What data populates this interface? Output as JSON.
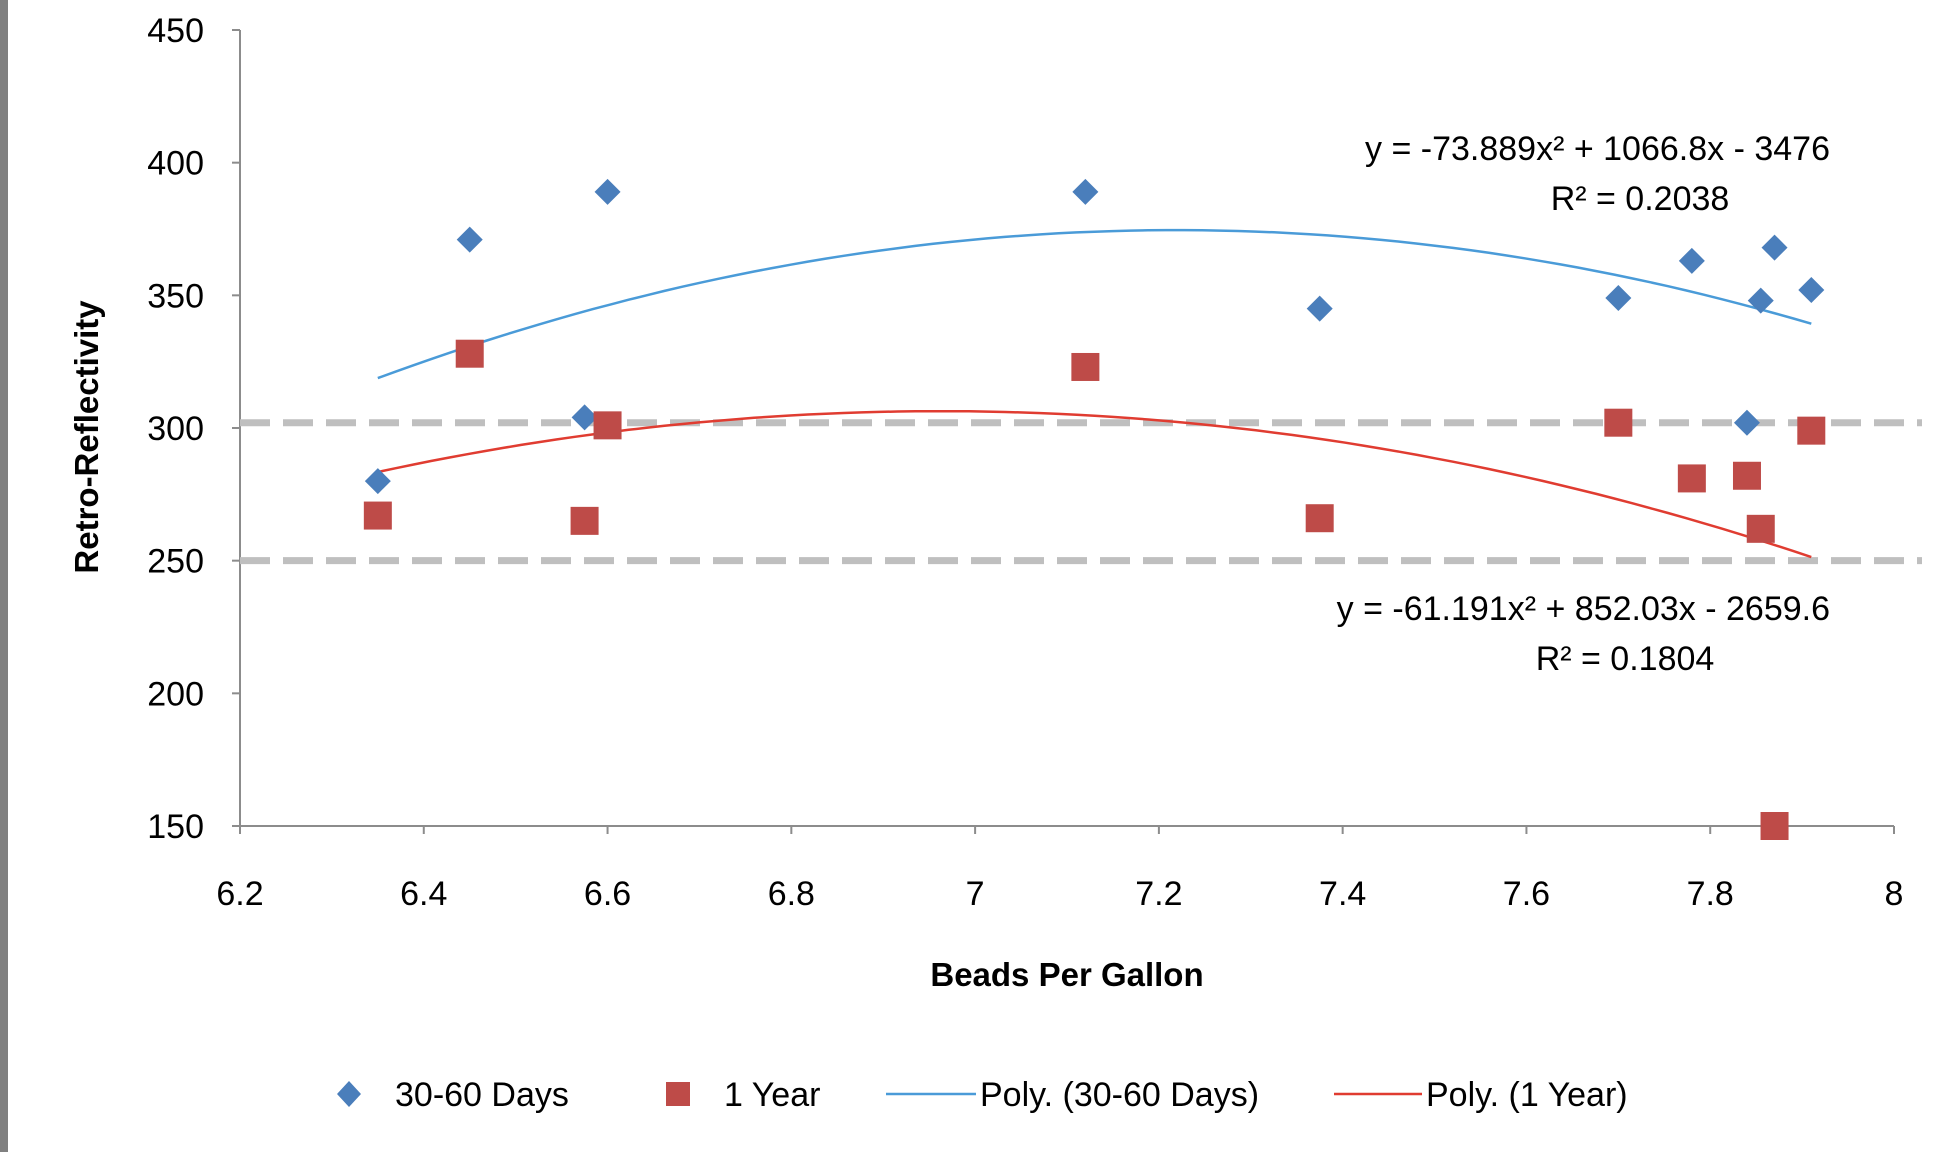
{
  "chart_data": {
    "type": "scatter",
    "title": "",
    "xlabel": "Beads Per Gallon",
    "ylabel": "Retro-Reflectivity",
    "xlim": [
      6.2,
      8
    ],
    "ylim": [
      150,
      450
    ],
    "xticks": [
      "6.2",
      "6.4",
      "6.6",
      "6.8",
      "7",
      "7.2",
      "7.4",
      "7.6",
      "7.8",
      "8"
    ],
    "yticks": [
      "150",
      "200",
      "250",
      "300",
      "350",
      "400",
      "450"
    ],
    "grid": false,
    "legend_position": "bottom",
    "reference_lines": [
      {
        "y": 302,
        "style": "dashed",
        "color": "#bfbfbf"
      },
      {
        "y": 250,
        "style": "dashed",
        "color": "#bfbfbf"
      }
    ],
    "series": [
      {
        "name": "30-60 Days",
        "marker": "diamond",
        "color": "#4a7ebb",
        "points": [
          [
            6.35,
            280
          ],
          [
            6.45,
            371
          ],
          [
            6.575,
            304
          ],
          [
            6.6,
            389
          ],
          [
            7.12,
            389
          ],
          [
            7.375,
            345
          ],
          [
            7.7,
            349
          ],
          [
            7.78,
            363
          ],
          [
            7.84,
            302
          ],
          [
            7.855,
            348
          ],
          [
            7.87,
            368
          ],
          [
            7.91,
            352
          ]
        ]
      },
      {
        "name": "1 Year",
        "marker": "square",
        "color": "#be4b48",
        "points": [
          [
            6.35,
            267
          ],
          [
            6.45,
            328
          ],
          [
            6.575,
            265
          ],
          [
            6.6,
            301
          ],
          [
            7.12,
            323
          ],
          [
            7.375,
            266
          ],
          [
            7.7,
            302
          ],
          [
            7.78,
            281
          ],
          [
            7.84,
            282
          ],
          [
            7.855,
            262
          ],
          [
            7.87,
            150
          ],
          [
            7.91,
            299
          ]
        ]
      }
    ],
    "trendlines": [
      {
        "name": "Poly. (30-60 Days)",
        "type": "poly2",
        "color": "#4a9bd8",
        "coefficients": [
          -73.889,
          1066.8,
          -3476
        ],
        "x_range": [
          6.35,
          7.91
        ],
        "equation": "y = -73.889x² + 1066.8x - 3476",
        "r2": "R² = 0.2038"
      },
      {
        "name": "Poly. (1 Year)",
        "type": "poly2",
        "color": "#e03c31",
        "coefficients": [
          -61.191,
          852.03,
          -2659.6
        ],
        "x_range": [
          6.35,
          7.91
        ],
        "equation": "y = -61.191x² + 852.03x - 2659.6",
        "r2": "R² = 0.1804"
      }
    ],
    "legend": [
      "30-60 Days",
      "1 Year",
      "Poly. (30-60 Days)",
      "Poly. (1 Year)"
    ]
  }
}
